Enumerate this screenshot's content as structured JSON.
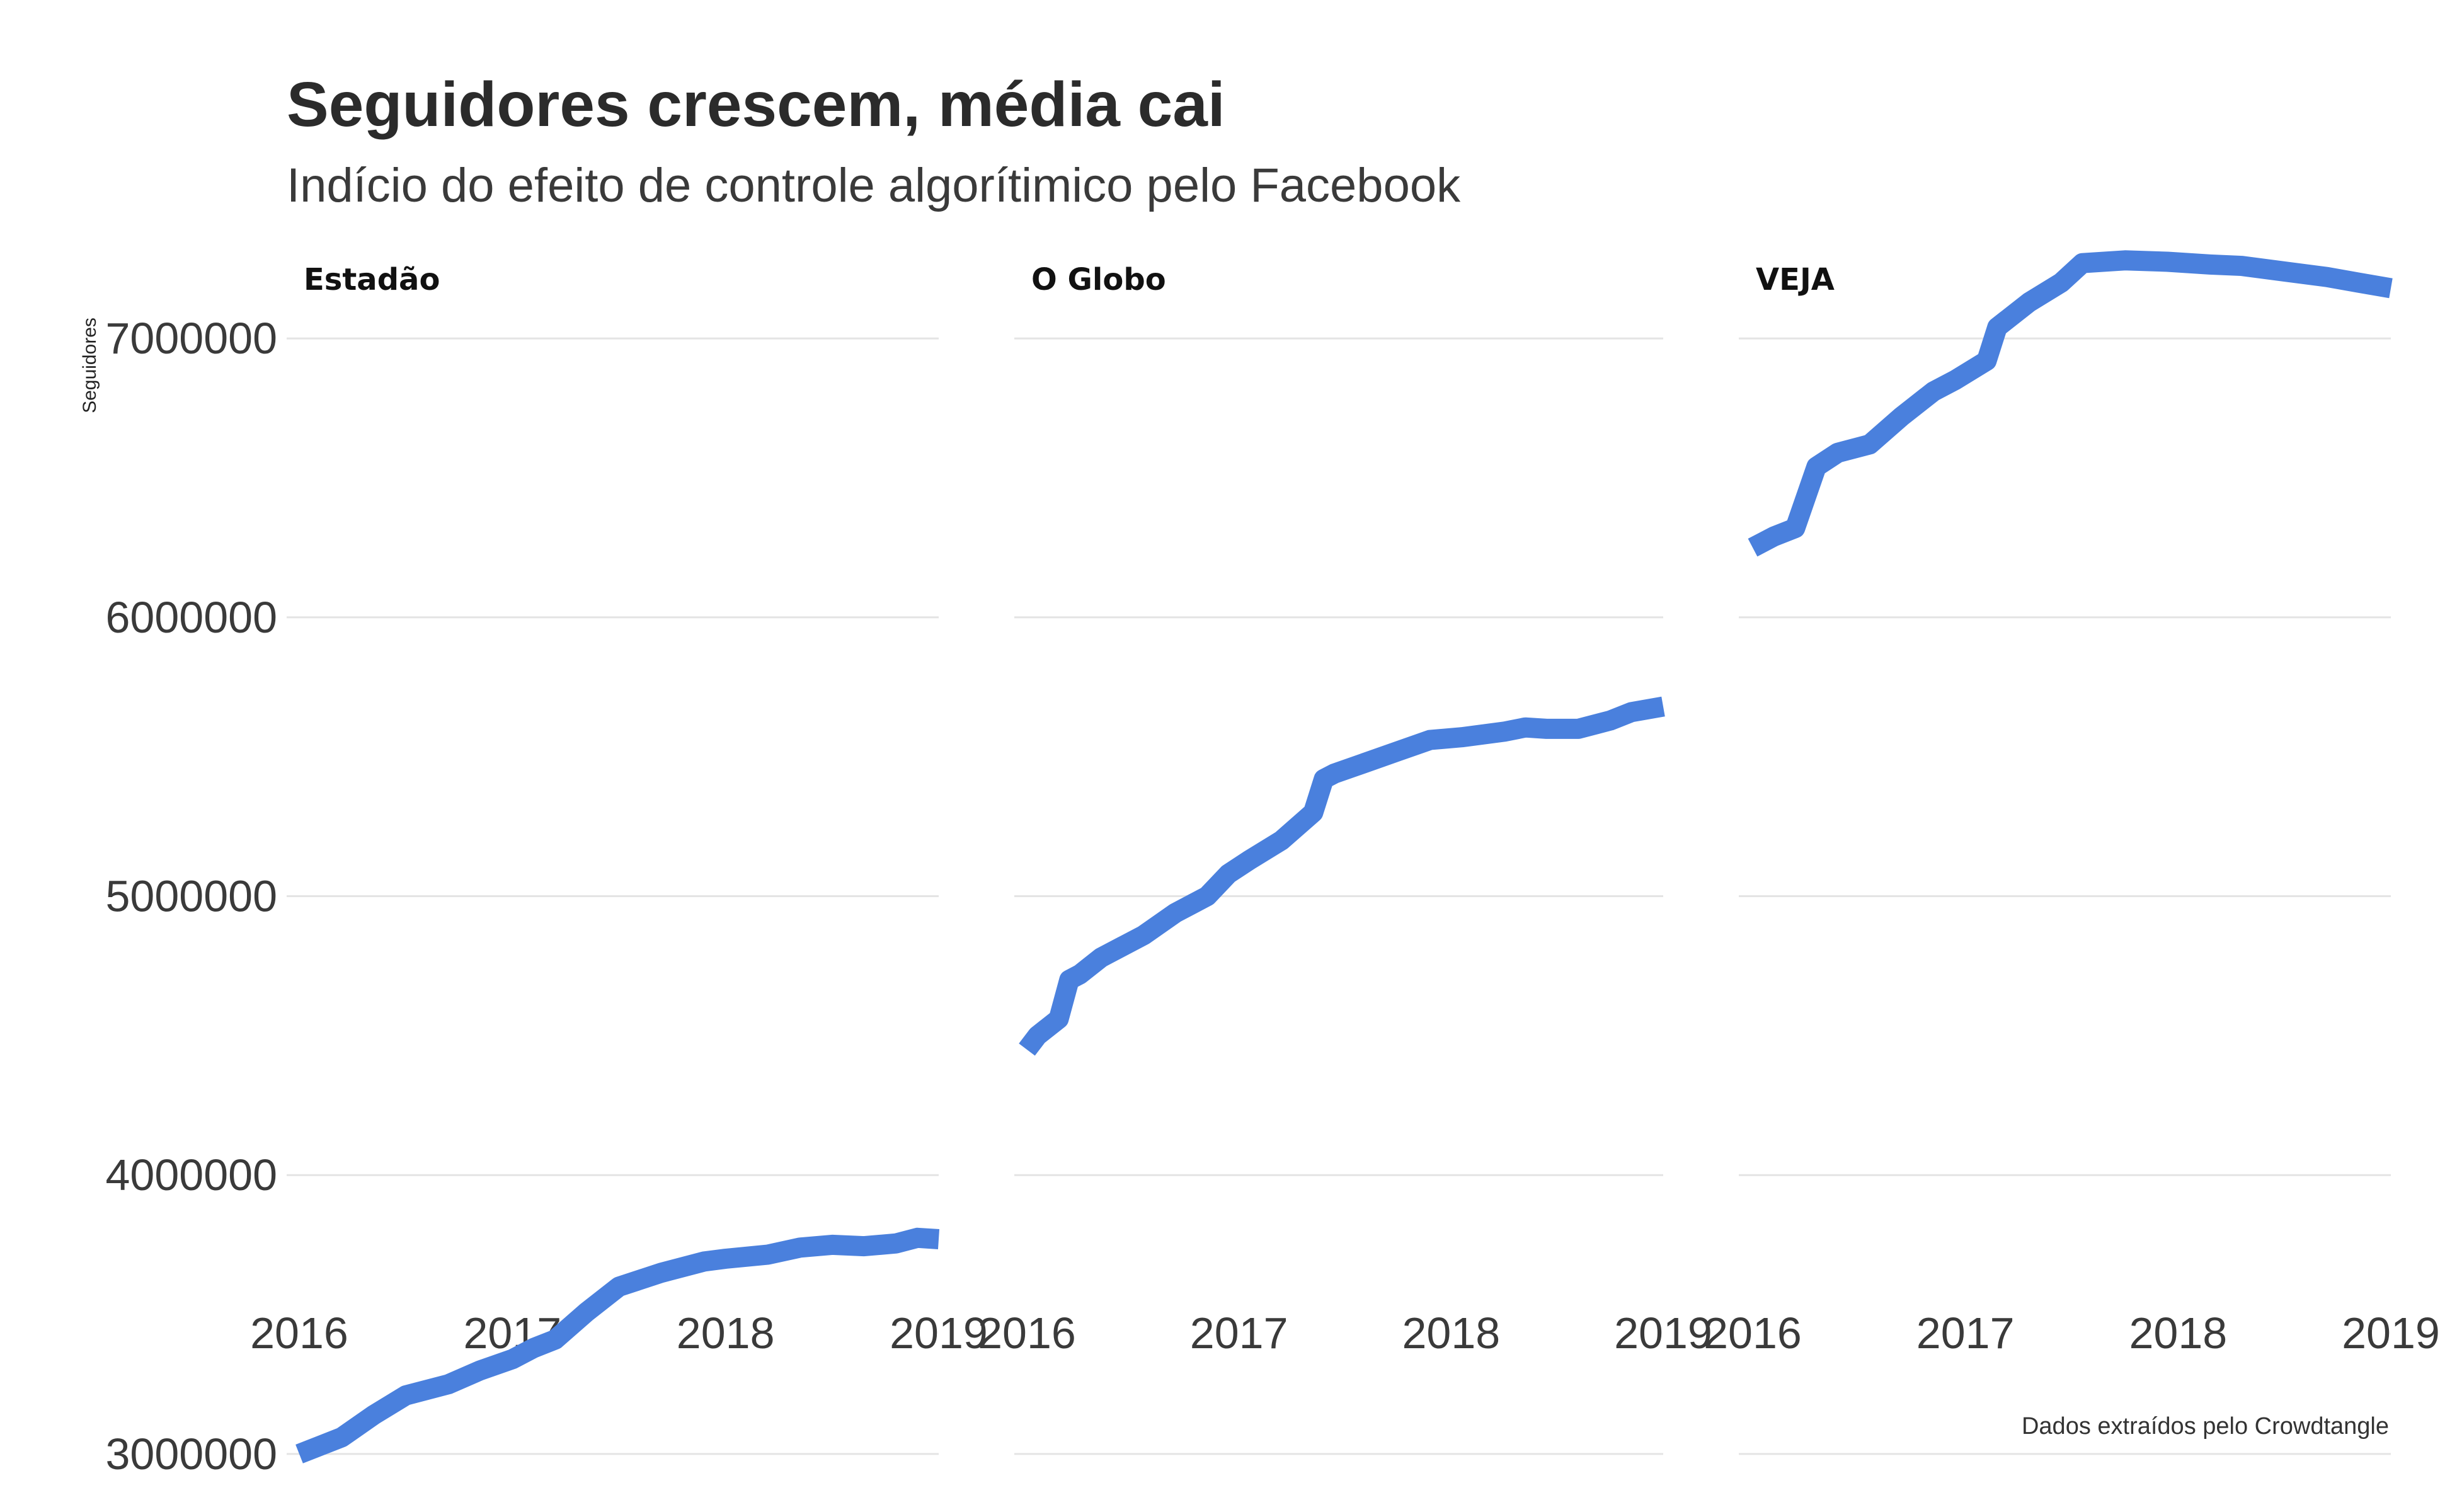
{
  "colors": {
    "line": "#4a80dd",
    "grid": "#e4e4e4",
    "text": "#2b2b2b"
  },
  "chart_data": {
    "type": "line",
    "title": "Seguidores crescem, média cai",
    "subtitle": "Indício do efeito de controle algorítimico pelo Facebook",
    "ylabel": "Seguidores",
    "caption": "Dados extraídos pelo Crowdtangle",
    "ylim": [
      2950000,
      7450000
    ],
    "xlim": [
      2016.0,
      2019.0
    ],
    "yticks": [
      3000000,
      4000000,
      5000000,
      6000000,
      7000000
    ],
    "ytick_labels": [
      "3000000",
      "4000000",
      "5000000",
      "6000000",
      "7000000"
    ],
    "xticks": [
      2016,
      2017,
      2018,
      2019
    ],
    "xtick_labels": [
      "2016",
      "2017",
      "2018",
      "2019"
    ],
    "grid": true,
    "legend": "none",
    "facets": [
      {
        "name": "Estadão",
        "x": [
          2016.0,
          2016.1,
          2016.2,
          2016.35,
          2016.5,
          2016.7,
          2016.85,
          2017.0,
          2017.1,
          2017.2,
          2017.35,
          2017.5,
          2017.7,
          2017.9,
          2018.0,
          2018.2,
          2018.35,
          2018.5,
          2018.65,
          2018.8,
          2018.9,
          2019.0
        ],
        "y": [
          3000000,
          3030000,
          3060000,
          3140000,
          3210000,
          3250000,
          3300000,
          3340000,
          3380000,
          3410000,
          3510000,
          3600000,
          3650000,
          3690000,
          3700000,
          3715000,
          3740000,
          3750000,
          3745000,
          3755000,
          3775000,
          3770000
        ]
      },
      {
        "name": "O Globo",
        "x": [
          2016.0,
          2016.05,
          2016.15,
          2016.2,
          2016.25,
          2016.35,
          2016.45,
          2016.55,
          2016.7,
          2016.85,
          2016.95,
          2017.05,
          2017.2,
          2017.35,
          2017.4,
          2017.45,
          2017.6,
          2017.75,
          2017.9,
          2018.05,
          2018.25,
          2018.35,
          2018.45,
          2018.6,
          2018.75,
          2018.85,
          2019.0
        ],
        "y": [
          4450000,
          4500000,
          4560000,
          4700000,
          4720000,
          4780000,
          4820000,
          4860000,
          4940000,
          5000000,
          5080000,
          5130000,
          5200000,
          5300000,
          5420000,
          5440000,
          5480000,
          5520000,
          5560000,
          5570000,
          5590000,
          5605000,
          5600000,
          5600000,
          5630000,
          5660000,
          5680000
        ]
      },
      {
        "name": "VEJA",
        "x": [
          2016.0,
          2016.1,
          2016.2,
          2016.25,
          2016.3,
          2016.4,
          2016.55,
          2016.7,
          2016.85,
          2016.95,
          2017.1,
          2017.15,
          2017.3,
          2017.45,
          2017.55,
          2017.75,
          2017.95,
          2018.15,
          2018.3,
          2018.5,
          2018.7,
          2018.85,
          2019.0
        ],
        "y": [
          6250000,
          6290000,
          6320000,
          6430000,
          6540000,
          6590000,
          6620000,
          6720000,
          6810000,
          6850000,
          6920000,
          7040000,
          7130000,
          7200000,
          7270000,
          7280000,
          7275000,
          7265000,
          7260000,
          7240000,
          7220000,
          7200000,
          7180000
        ]
      }
    ]
  }
}
